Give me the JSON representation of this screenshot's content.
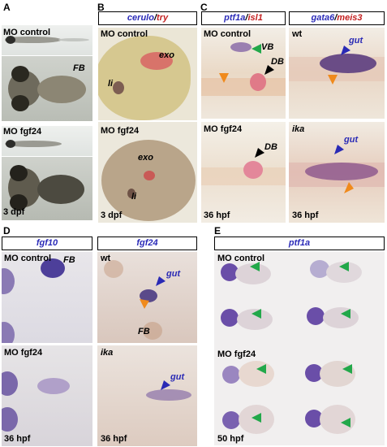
{
  "panels": {
    "A": {
      "letter": "A",
      "labels": [
        "MO control",
        "MO fgf24"
      ],
      "fb": "FB",
      "stage": "3 dpf"
    },
    "B": {
      "letter": "B",
      "title_a": "cerulo",
      "title_sep": "/",
      "title_b": "try",
      "rows": [
        {
          "label": "MO control",
          "exo": "exo",
          "li": "li"
        },
        {
          "label": "MO fgf24",
          "exo": "exo",
          "li": "li"
        }
      ],
      "stage": "3 dpf"
    },
    "C": {
      "letter": "C",
      "title1_a": "ptf1a",
      "title1_sep": "/",
      "title1_b": "isl1",
      "title2_a": "gata6",
      "title2_sep": "/",
      "title2_b": "meis3",
      "left": [
        {
          "label": "MO control",
          "vb": "VB",
          "db": "DB"
        },
        {
          "label": "MO fgf24",
          "db": "DB"
        }
      ],
      "right": [
        {
          "label": "wt",
          "gut": "gut"
        },
        {
          "label": "ika",
          "gut": "gut"
        }
      ],
      "stage": "36 hpf"
    },
    "D": {
      "letter": "D",
      "title1": "fgf10",
      "title2": "fgf24",
      "left": [
        {
          "label": "MO control",
          "fb": "FB"
        },
        {
          "label": "MO fgf24"
        }
      ],
      "right": [
        {
          "label": "wt",
          "gut": "gut",
          "fb": "FB"
        },
        {
          "label": "ika",
          "gut": "gut"
        }
      ],
      "stage": "36 hpf"
    },
    "E": {
      "letter": "E",
      "title": "ptf1a",
      "labels": [
        "MO control",
        "MO fgf24"
      ],
      "stage": "50 hpf"
    }
  },
  "colors": {
    "probe_blue": "#2b2bb8",
    "probe_red": "#c42020",
    "arrow_green": "#22a84a",
    "arrow_orange": "#f08a1c"
  }
}
